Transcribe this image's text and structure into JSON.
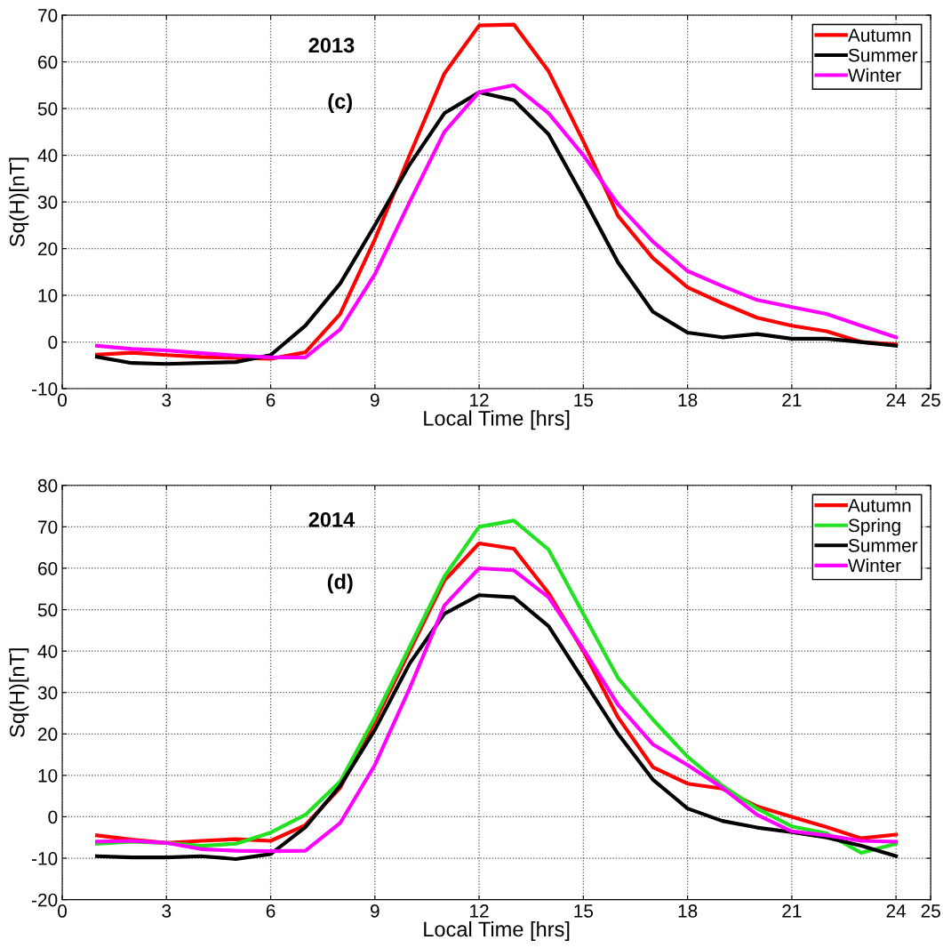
{
  "chart_data": [
    {
      "type": "line",
      "xlabel": "Local Time [hrs]",
      "ylabel": "Sq(H)[nT]",
      "annotations": [
        "2013",
        "(c)"
      ],
      "x": [
        1,
        2,
        3,
        4,
        5,
        6,
        7,
        8,
        9,
        10,
        11,
        12,
        13,
        14,
        15,
        16,
        17,
        18,
        19,
        20,
        21,
        22,
        23,
        24
      ],
      "xlim": [
        0,
        25
      ],
      "xticks": [
        0,
        3,
        6,
        9,
        12,
        15,
        18,
        21,
        24,
        25
      ],
      "ylim": [
        -10,
        70
      ],
      "yticks": [
        -10,
        0,
        10,
        20,
        30,
        40,
        50,
        60,
        70
      ],
      "grid": true,
      "legend": "top right",
      "line_style": "solid",
      "marker": "none",
      "series": [
        {
          "name": "Autumn",
          "color": "#ff0000",
          "values": [
            -2.7,
            -2.3,
            -2.8,
            -3.2,
            -3.4,
            -3.6,
            -2.2,
            6,
            22,
            40,
            57.5,
            67.8,
            68,
            58,
            43,
            27,
            18,
            11.7,
            8.3,
            5.2,
            3.5,
            2.3,
            0,
            -0.5
          ]
        },
        {
          "name": "Summer",
          "color": "#000000",
          "values": [
            -3.2,
            -4.5,
            -4.7,
            -4.5,
            -4.3,
            -2.8,
            3.5,
            12.5,
            25,
            38,
            49,
            53.5,
            51.8,
            44.5,
            31,
            17,
            6.5,
            2,
            1,
            1.7,
            0.7,
            0.7,
            0,
            -0.8
          ]
        },
        {
          "name": "Winter",
          "color": "#ff00ff",
          "values": [
            -0.8,
            -1.5,
            -1.8,
            -2.4,
            -2.9,
            -3.3,
            -3.3,
            2.7,
            14.5,
            30,
            45,
            53.5,
            55,
            49,
            40,
            29.5,
            21.5,
            15.2,
            12,
            9,
            7.5,
            6,
            3.5,
            1
          ]
        }
      ]
    },
    {
      "type": "line",
      "xlabel": "Local Time [hrs]",
      "ylabel": "Sq(H)[nT]",
      "annotations": [
        "2014",
        "(d)"
      ],
      "x": [
        1,
        2,
        3,
        4,
        5,
        6,
        7,
        8,
        9,
        10,
        11,
        12,
        13,
        14,
        15,
        16,
        17,
        18,
        19,
        20,
        21,
        22,
        23,
        24
      ],
      "xlim": [
        0,
        25
      ],
      "xticks": [
        0,
        3,
        6,
        9,
        12,
        15,
        18,
        21,
        24,
        25
      ],
      "ylim": [
        -20,
        80
      ],
      "yticks": [
        -20,
        -10,
        0,
        10,
        20,
        30,
        40,
        50,
        60,
        70,
        80
      ],
      "grid": true,
      "legend": "top right",
      "line_style": "solid",
      "marker": "none",
      "series": [
        {
          "name": "Autumn",
          "color": "#ff0000",
          "values": [
            -4.5,
            -5.5,
            -6.3,
            -5.8,
            -5.4,
            -5.8,
            -2,
            7,
            23,
            40,
            57,
            66,
            64.7,
            54,
            40,
            24,
            12,
            8,
            6.8,
            2.5,
            0,
            -2.5,
            -5.2,
            -4.3
          ]
        },
        {
          "name": "Spring",
          "color": "#22e022",
          "values": [
            -6.5,
            -6,
            -6.3,
            -7,
            -6.5,
            -3.8,
            0.5,
            8.5,
            24,
            41,
            58,
            70,
            71.5,
            64.5,
            49,
            33.5,
            23.5,
            14.5,
            7.5,
            2,
            -2.3,
            -4,
            -8.7,
            -6.5
          ]
        },
        {
          "name": "Summer",
          "color": "#000000",
          "values": [
            -9.5,
            -9.8,
            -9.8,
            -9.5,
            -10.2,
            -9,
            -2.5,
            7.5,
            21,
            37,
            49,
            53.5,
            53,
            46,
            33,
            20,
            9,
            2,
            -1,
            -2.6,
            -3.7,
            -5,
            -7,
            -9.5
          ]
        },
        {
          "name": "Winter",
          "color": "#ff00ff",
          "values": [
            -6,
            -5.8,
            -6.3,
            -7.8,
            -8.2,
            -8.3,
            -8.2,
            -1.5,
            12.5,
            31,
            51,
            60,
            59.5,
            53,
            40.5,
            27,
            17.5,
            12.5,
            7,
            0.5,
            -3.5,
            -4.5,
            -5.8,
            -6
          ]
        }
      ]
    }
  ]
}
